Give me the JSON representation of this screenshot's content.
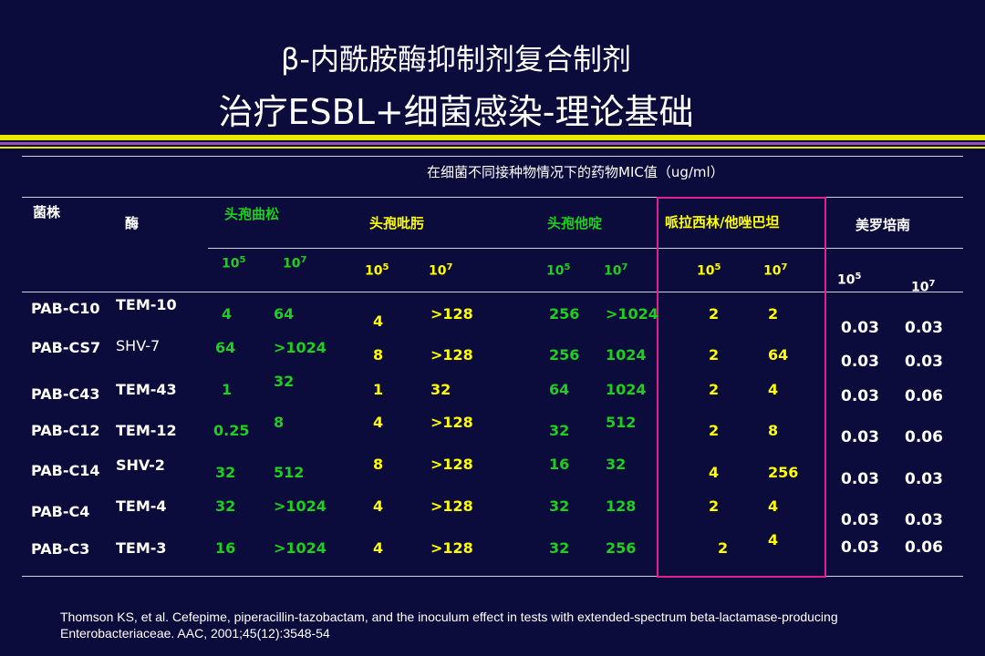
{
  "title": {
    "line1": "β-内酰胺酶抑制剂复合制剂",
    "line2": "治疗ESBL+细菌感染-理论基础"
  },
  "caption": "在细菌不同接种物情况下的药物MIC值（ug/ml）",
  "headers": {
    "strain": "菌株",
    "enzyme": "酶",
    "drugs": [
      "头孢曲松",
      "头孢吡肟",
      "头孢他啶",
      "哌拉西林/他唑巴坦",
      "美罗培南"
    ]
  },
  "inoculum": {
    "base": "10",
    "exp_low": "5",
    "exp_high": "7"
  },
  "rows": [
    {
      "strain": "PAB-C10",
      "enzyme": "TEM-10",
      "values": [
        "4",
        "64",
        "4",
        ">128",
        "256",
        ">1024",
        "2",
        "2",
        "0.03",
        "0.03"
      ]
    },
    {
      "strain": "PAB-CS7",
      "enzyme": "SHV-7",
      "values": [
        "64",
        ">1024",
        "8",
        ">128",
        "256",
        "1024",
        "2",
        "64",
        "0.03",
        "0.03"
      ]
    },
    {
      "strain": "PAB-C43",
      "enzyme": "TEM-43",
      "values": [
        "1",
        "32",
        "1",
        "32",
        "64",
        "1024",
        "2",
        "4",
        "0.03",
        "0.06"
      ]
    },
    {
      "strain": "PAB-C12",
      "enzyme": "TEM-12",
      "values": [
        "0.25",
        "8",
        "4",
        ">128",
        "32",
        "512",
        "2",
        "8",
        "0.03",
        "0.06"
      ]
    },
    {
      "strain": "PAB-C14",
      "enzyme": "SHV-2",
      "values": [
        "32",
        "512",
        "8",
        ">128",
        "16",
        "32",
        "4",
        "256",
        "0.03",
        "0.03"
      ]
    },
    {
      "strain": "PAB-C4",
      "enzyme": "TEM-4",
      "values": [
        "32",
        ">1024",
        "4",
        ">128",
        "32",
        "128",
        "2",
        "4",
        "0.03",
        "0.03"
      ]
    },
    {
      "strain": "PAB-C3",
      "enzyme": "TEM-3",
      "values": [
        "16",
        ">1024",
        "4",
        ">128",
        "32",
        "256",
        "2",
        "4",
        "0.03",
        "0.06"
      ]
    }
  ],
  "reference": "Thomson KS, et al. Cefepime, piperacillin-tazobactam, and the inoculum effect in tests with extended-spectrum beta-lactamase-producing Enterobacteriaceae. AAC, 2001;45(12):3548-54",
  "colors": {
    "background": "#0b0c3c",
    "green": "#1fcf1f",
    "yellow": "#ffff00",
    "highlight_box": "#e0208c",
    "bar_yellow": "#e8e800",
    "bar_purple": "#9a4fb8"
  }
}
